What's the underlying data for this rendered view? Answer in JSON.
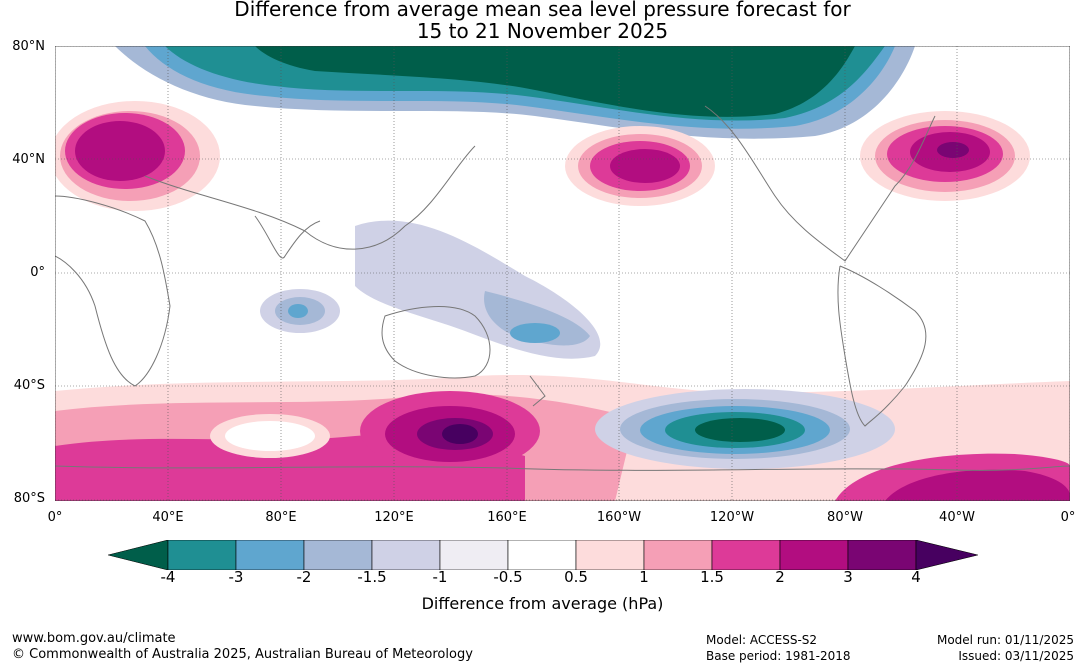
{
  "title_line1": "Difference from average mean sea level pressure forecast for",
  "title_line2": "15 to 21 November 2025",
  "lat_labels": [
    "80°N",
    "40°N",
    "0°",
    "40°S",
    "80°S"
  ],
  "lon_labels": [
    "0°",
    "40°E",
    "80°E",
    "120°E",
    "160°E",
    "160°W",
    "120°W",
    "80°W",
    "40°W",
    "0°"
  ],
  "colorbar": {
    "title": "Difference from average (hPa)",
    "ticks": [
      "-4",
      "-3",
      "-2",
      "-1.5",
      "-1",
      "-0.5",
      "0.5",
      "1",
      "1.5",
      "2",
      "3",
      "4"
    ],
    "colors": [
      "#005e4a",
      "#1f8f93",
      "#5fa6cf",
      "#a5b8d6",
      "#cfd1e6",
      "#efedf3",
      "#ffffff",
      "#fddcdc",
      "#f59fb6",
      "#dd3a98",
      "#b20d80",
      "#7a0573",
      "#470060"
    ]
  },
  "footer": {
    "url": "www.bom.gov.au/climate",
    "copyright": "© Commonwealth of Australia 2025, Australian Bureau of Meteorology",
    "model": "Model: ACCESS-S2",
    "base_period": "Base period: 1981-2018",
    "model_run": "Model run: 01/11/2025",
    "issued": "Issued: 03/11/2025"
  }
}
